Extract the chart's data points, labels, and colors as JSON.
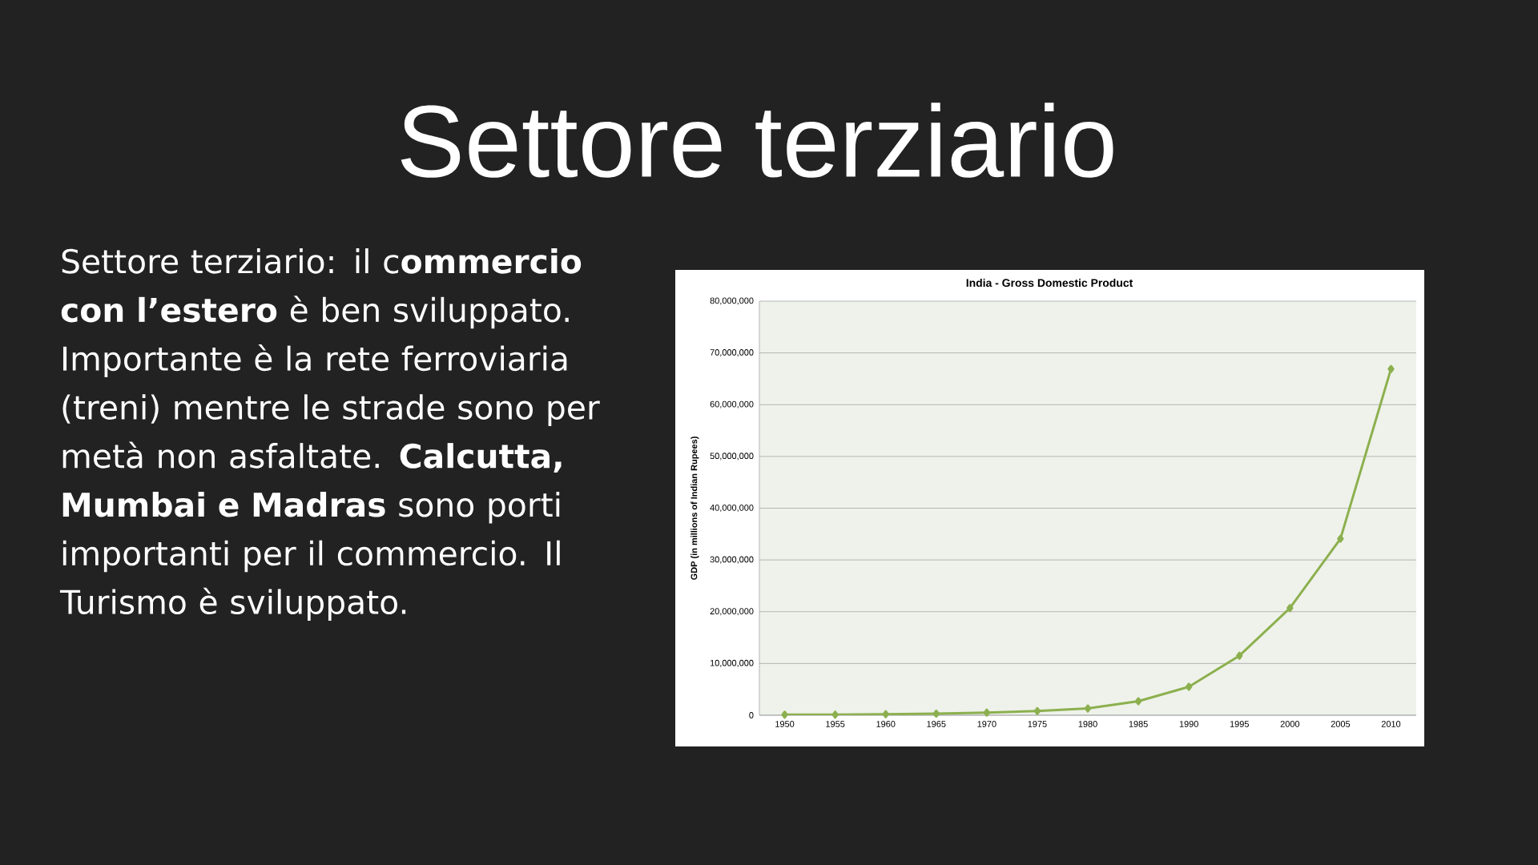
{
  "chart_data": {
    "type": "line",
    "title": "Settore terziario",
    "subtitle": "India - Gross Domestic Product",
    "ylabel": "GDP  (in millions of Indian Rupees)",
    "annotations": [
      "Settore terziario: il c**ommercio con l’estero** è ben sviluppato. Importante è la rete ferroviaria (treni) mentre le strade sono per metà non asfaltate. **Calcutta, Mumbai e Madras** sono porti importanti per il commercio. Il Turismo è sviluppato."
    ],
    "categories": [
      "1950",
      "1955",
      "1960",
      "1965",
      "1970",
      "1975",
      "1980",
      "1985",
      "1990",
      "1995",
      "2000",
      "2005",
      "2010"
    ],
    "series": [
      {
        "color": "#8cb04f",
        "values": [
          100000,
          100000,
          200000,
          300000,
          500000,
          800000,
          1300000,
          2700000,
          5500000,
          11500000,
          20700000,
          34100000,
          66900000
        ]
      }
    ],
    "ylim": [
      0,
      80000000
    ],
    "yticks": [
      0,
      {
        "value": 10000000,
        "label": "10,000,000"
      },
      {
        "value": 20000000,
        "label": "20,000,000"
      },
      {
        "value": 30000000,
        "label": "30,000,000"
      },
      {
        "value": 40000000,
        "label": "40,000,000"
      },
      {
        "value": 50000000,
        "label": "50,000,000"
      },
      {
        "value": 60000000,
        "label": "60,000,000"
      },
      {
        "value": 70000000,
        "label": "70,000,000"
      },
      {
        "value": 80000000,
        "label": "80,000,000"
      }
    ],
    "grid": "y",
    "marker": "diamond",
    "line_style": "solid"
  }
}
